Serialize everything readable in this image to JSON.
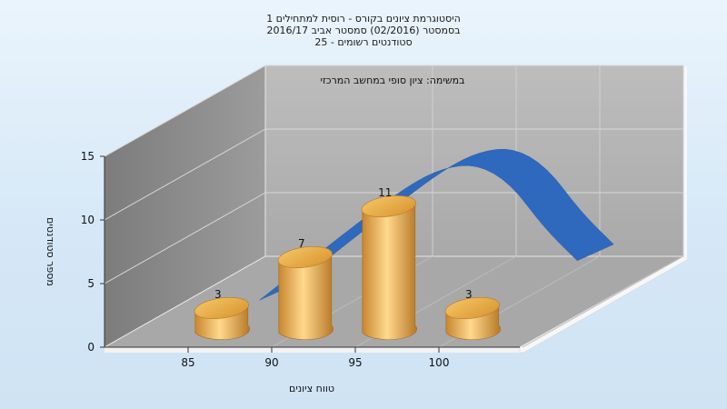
{
  "chart_data": {
    "type": "bar",
    "title_lines": [
      "היסטוגרמת ציונים בקורס - רוסית למתחילים 1",
      "בסמסטר (02/2016) סמסטר אביב 2016/17",
      "סטודנטים רשומים - 25"
    ],
    "annotation": "במשימה: ציון סופי במחשב המרכזי",
    "xlabel": "טווח ציונים",
    "ylabel": "מספר סטודנטים",
    "x_ticks": [
      "85",
      "90",
      "95",
      "100"
    ],
    "y_ticks": [
      "0",
      "5",
      "10",
      "15"
    ],
    "ylim": [
      0,
      15
    ],
    "bars": [
      {
        "x": 87,
        "value": 3,
        "label": "3"
      },
      {
        "x": 92,
        "value": 7,
        "label": "7"
      },
      {
        "x": 97,
        "value": 11,
        "label": "11"
      },
      {
        "x": 102,
        "value": 3,
        "label": "3"
      }
    ],
    "curve": [
      {
        "x": 89,
        "y": 3.2
      },
      {
        "x": 92,
        "y": 6.3
      },
      {
        "x": 95,
        "y": 9.4
      },
      {
        "x": 98,
        "y": 12.3
      },
      {
        "x": 100,
        "y": 13.6
      },
      {
        "x": 102,
        "y": 13.9
      },
      {
        "x": 104,
        "y": 12.4
      },
      {
        "x": 106,
        "y": 8.9
      },
      {
        "x": 108,
        "y": 6.3
      }
    ],
    "grid": true,
    "colors": {
      "bar": "#e5a43c",
      "bar_highlight": "#ffd88a",
      "bar_shadow": "#b97a24",
      "curve": "#2f69bd",
      "back_wall": "#b3b3b3",
      "side_wall": "#8f8f8f",
      "floor": "#a6a6a6",
      "frame": "#ffffff"
    }
  }
}
